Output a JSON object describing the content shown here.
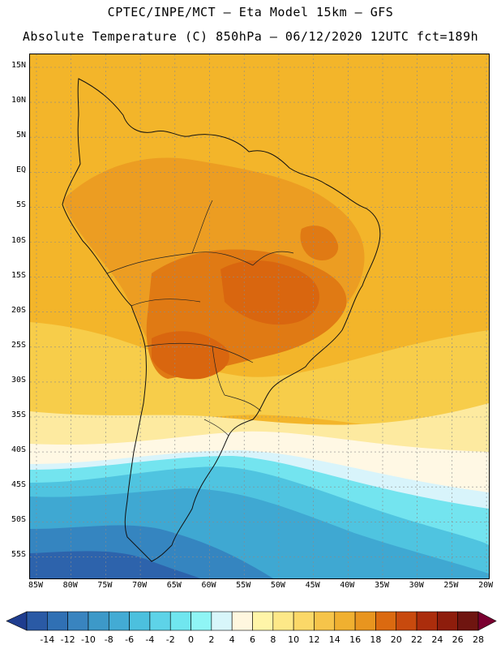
{
  "header": {
    "line1": "CPTEC/INPE/MCT –  Eta Model 15km – GFS",
    "line2": "Absolute Temperature (C) 850hPa – 06/12/2020 12UTC fct=189h"
  },
  "axes": {
    "lat_labels": [
      "15N",
      "10N",
      "5N",
      "EQ",
      "5S",
      "10S",
      "15S",
      "20S",
      "25S",
      "30S",
      "35S",
      "40S",
      "45S",
      "50S",
      "55S"
    ],
    "lon_labels": [
      "85W",
      "80W",
      "75W",
      "70W",
      "65W",
      "60W",
      "55W",
      "50W",
      "45W",
      "40W",
      "35W",
      "30W",
      "25W",
      "20W"
    ]
  },
  "colorbar": {
    "labels": [
      "-14",
      "-12",
      "-10",
      "-8",
      "-6",
      "-4",
      "-2",
      "0",
      "2",
      "4",
      "6",
      "8",
      "10",
      "12",
      "14",
      "16",
      "18",
      "20",
      "22",
      "24",
      "26",
      "28"
    ],
    "colors": [
      "#1f3d8f",
      "#2a5aa5",
      "#3070b4",
      "#3984bf",
      "#3d99c8",
      "#43abd4",
      "#4cc0de",
      "#5ed3e8",
      "#70e6ef",
      "#8ff5f5",
      "#d8f6fa",
      "#fff7df",
      "#fff5a8",
      "#fde888",
      "#fbd868",
      "#f6c44a",
      "#f0b030",
      "#e8951f",
      "#db6a10",
      "#c84a0e",
      "#ab2d0c",
      "#8e1d0c",
      "#6f1510",
      "#7a0030"
    ]
  },
  "fields": {
    "ocean_north": "#f3b52a",
    "tropical_land": "#ec9d22",
    "hot_core": "#d9660f",
    "hot_core_2": "#e07a14",
    "subtropics": "#f7cd4a",
    "pale_band": "#fdeaa0",
    "cream_band": "#fff8e4",
    "cold_1": "#d8f4fb",
    "cold_2": "#73e4ef",
    "cold_3": "#4fc4e0",
    "cold_4": "#3fa8d2",
    "cold_5": "#3585c0",
    "cold_6": "#2d63ac"
  }
}
